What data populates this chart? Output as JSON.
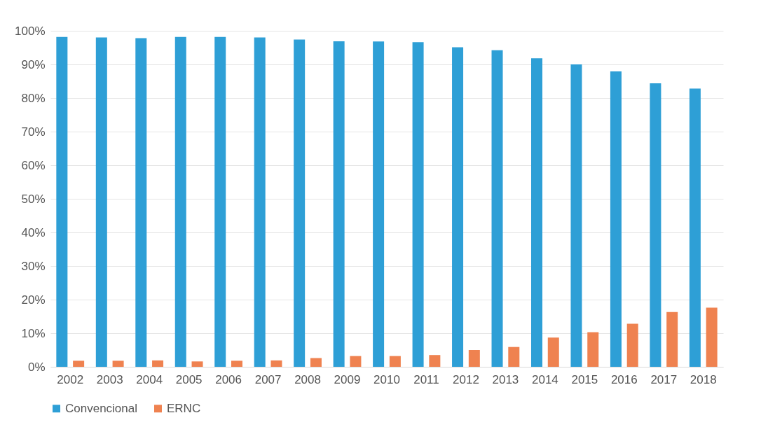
{
  "chart_data": {
    "type": "bar",
    "categories": [
      "2002",
      "2003",
      "2004",
      "2005",
      "2006",
      "2007",
      "2008",
      "2009",
      "2010",
      "2011",
      "2012",
      "2013",
      "2014",
      "2015",
      "2016",
      "2017",
      "2018"
    ],
    "series": [
      {
        "name": "Convencional",
        "color": "#2e9fd6",
        "values": [
          98.2,
          98,
          97.8,
          98.2,
          98.2,
          98,
          97.4,
          96.9,
          96.8,
          96.6,
          95.1,
          94.2,
          91.8,
          90,
          87.9,
          84.4,
          82.8
        ]
      },
      {
        "name": "ERNC",
        "color": "#ef8250",
        "values": [
          1.8,
          1.8,
          1.9,
          1.6,
          1.8,
          1.9,
          2.6,
          3.2,
          3.2,
          3.5,
          5,
          5.9,
          8.7,
          10.3,
          12.8,
          16.3,
          17.6
        ]
      }
    ],
    "ylim": [
      0,
      100
    ],
    "yticks": [
      {
        "value": 0,
        "label": "0%"
      },
      {
        "value": 10,
        "label": "10%"
      },
      {
        "value": 20,
        "label": "20%"
      },
      {
        "value": 30,
        "label": "30%"
      },
      {
        "value": 40,
        "label": "40%"
      },
      {
        "value": 50,
        "label": "50%"
      },
      {
        "value": 60,
        "label": "60%"
      },
      {
        "value": 70,
        "label": "70%"
      },
      {
        "value": 80,
        "label": "80%"
      },
      {
        "value": 90,
        "label": "90%"
      },
      {
        "value": 100,
        "label": "100%"
      }
    ],
    "grid": "y",
    "legend": "bottom"
  }
}
